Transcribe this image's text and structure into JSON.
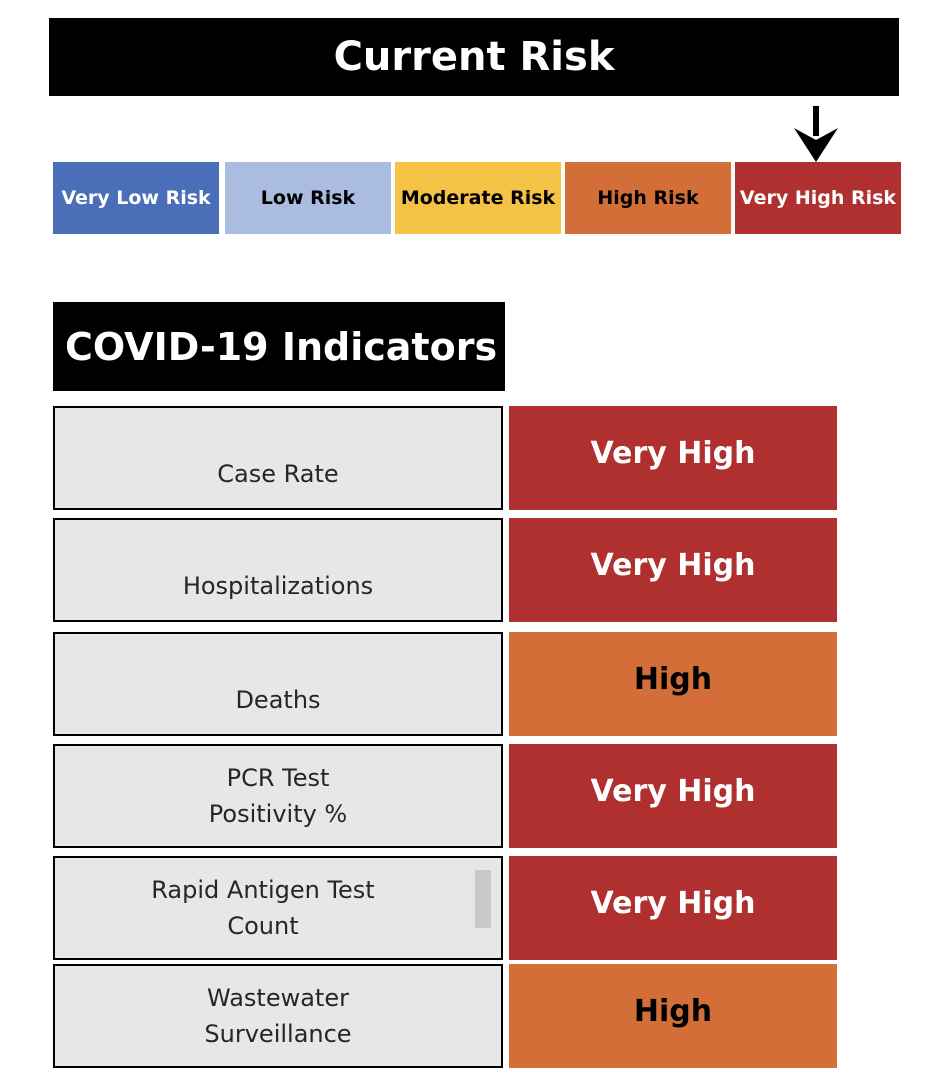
{
  "header": {
    "title": "Current Risk"
  },
  "risk_scale": {
    "segments": [
      {
        "label": "Very Low Risk",
        "bg": "#4a6fb8",
        "fg": "#ffffff"
      },
      {
        "label": "Low Risk",
        "bg": "#aabce0",
        "fg": "#000000"
      },
      {
        "label": "Moderate Risk",
        "bg": "#f4c244",
        "fg": "#000000"
      },
      {
        "label": "High Risk",
        "bg": "#d46e38",
        "fg": "#000000"
      },
      {
        "label": "Very High Risk",
        "bg": "#b03030",
        "fg": "#ffffff"
      }
    ],
    "current_index": 4,
    "marker_icon": "down-arrow-icon"
  },
  "indicators": {
    "title": "COVID-19 Indicators",
    "rows": [
      {
        "label_lines": [
          "Case Rate"
        ],
        "value": "Very High",
        "bg": "#b03030",
        "fg": "#ffffff"
      },
      {
        "label_lines": [
          "Hospitalizations"
        ],
        "value": "Very High",
        "bg": "#b03030",
        "fg": "#ffffff"
      },
      {
        "label_lines": [
          "Deaths"
        ],
        "value": "High",
        "bg": "#d46e38",
        "fg": "#000000"
      },
      {
        "label_lines": [
          "PCR Test",
          "Positivity %"
        ],
        "value": "Very High",
        "bg": "#b03030",
        "fg": "#ffffff"
      },
      {
        "label_lines": [
          "Rapid Antigen Test",
          "Count"
        ],
        "value": "Very High",
        "bg": "#b03030",
        "fg": "#ffffff"
      },
      {
        "label_lines": [
          "Wastewater",
          "Surveillance"
        ],
        "value": "High",
        "bg": "#d46e38",
        "fg": "#000000"
      }
    ]
  }
}
